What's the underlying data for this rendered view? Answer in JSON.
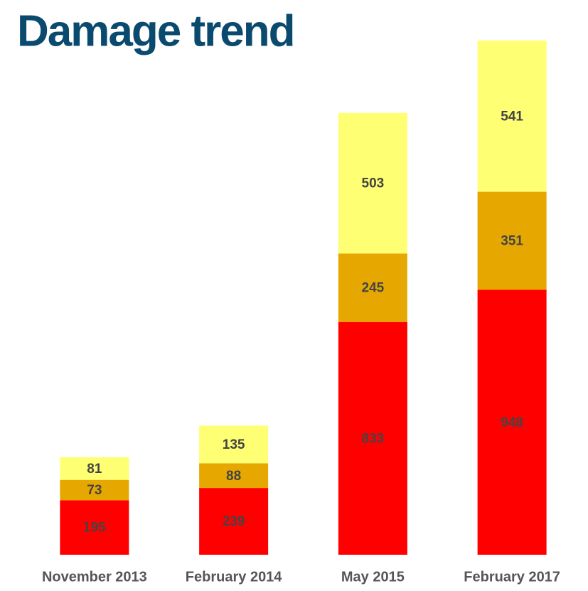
{
  "chart_data": {
    "type": "stacked_bar",
    "title": "Damage trend",
    "categories": [
      "November 2013",
      "February 2014",
      "May 2015",
      "February 2017"
    ],
    "series": [
      {
        "color": "#ff0000",
        "values": [
          195,
          239,
          833,
          948
        ]
      },
      {
        "color": "#e6a800",
        "values": [
          73,
          88,
          245,
          351
        ]
      },
      {
        "color": "#ffff73",
        "values": [
          81,
          135,
          503,
          541
        ]
      }
    ]
  }
}
